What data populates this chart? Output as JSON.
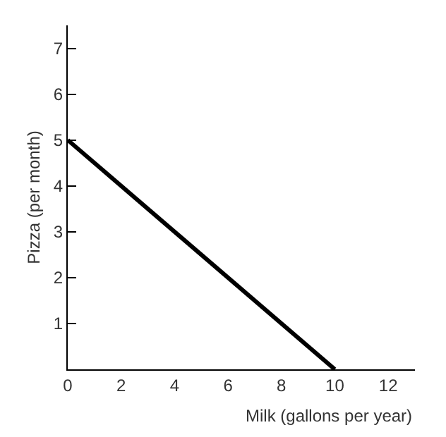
{
  "chart_data": {
    "type": "line",
    "xlabel": "Milk (gallons per year)",
    "ylabel": "Pizza (per month)",
    "x": [
      0,
      10
    ],
    "series": [
      {
        "color": "#000000",
        "values": [
          5,
          0
        ]
      }
    ],
    "xlim": [
      0,
      13
    ],
    "ylim": [
      0,
      7.5
    ],
    "xticks": [
      0,
      2,
      4,
      6,
      8,
      10,
      12
    ],
    "yticks": [
      1,
      2,
      3,
      4,
      5,
      6,
      7
    ],
    "marker": "none",
    "line_style": "solid"
  }
}
